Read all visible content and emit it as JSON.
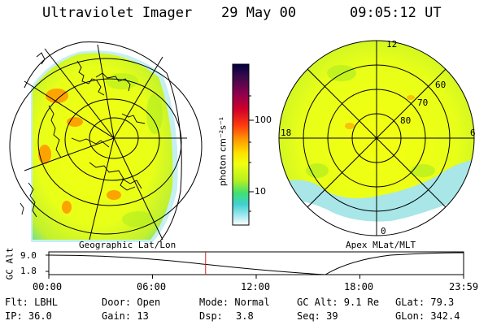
{
  "header": {
    "instrument": "Ultraviolet Imager",
    "date": "29 May 00",
    "time": "09:05:12 UT"
  },
  "panels": {
    "left_label": "Geographic Lat/Lon",
    "right_label": "Apex MLat/MLT"
  },
  "colorbar": {
    "units": "photon cm⁻²s⁻¹",
    "tick_100": "100",
    "tick_10": "10",
    "colors": [
      "#000040",
      "#3a0a4a",
      "#8b0050",
      "#d0002a",
      "#ff3a10",
      "#ff9a00",
      "#ffe000",
      "#f0ff10",
      "#b8f020",
      "#40e070",
      "#40d0d0",
      "#a0e8f0",
      "#ffffff"
    ]
  },
  "polar": {
    "mlt_12": "12",
    "mlt_18": "18",
    "mlt_6": "6",
    "mlt_0": "0",
    "lat_60": "60",
    "lat_70": "70",
    "lat_80": "80"
  },
  "timeline": {
    "ylabel": "GC Alt",
    "y_top": "9.0",
    "y_bottom": "1.8",
    "ticks": [
      "00:00",
      "06:00",
      "12:00",
      "18:00",
      "23:59"
    ],
    "current_fraction": 0.378
  },
  "info": {
    "flt": "Flt: LBHL",
    "ip": "IP: 36.0",
    "door": "Door: Open",
    "gain": "Gain: 13",
    "mode": "Mode: Normal",
    "dsp_label": "Dsp:",
    "dsp_value": "3.8",
    "gc_alt": "GC Alt: 9.1 Re",
    "seq": "Seq: 39",
    "glat": "GLat: 79.3",
    "glon": "GLon: 342.4"
  }
}
